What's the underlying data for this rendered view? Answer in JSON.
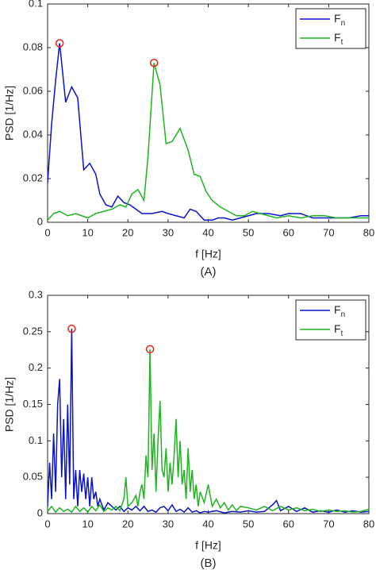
{
  "chart_data": [
    {
      "type": "line",
      "xlabel": "f [Hz]",
      "ylabel": "PSD [1/Hz]",
      "caption": "(A)",
      "xlim": [
        0,
        80
      ],
      "xticks": [
        0,
        10,
        20,
        30,
        40,
        50,
        60,
        70,
        80
      ],
      "ylim": [
        0,
        0.1
      ],
      "yticks": [
        0,
        0.02,
        0.04,
        0.06,
        0.08,
        0.1
      ],
      "legend": "upper right",
      "mark_peaks": true,
      "peak_color": "#e8221b",
      "series": [
        {
          "name": "Fn",
          "color": "#0a14c8",
          "x": [
            0,
            1,
            2,
            3,
            4.5,
            6,
            7.5,
            9,
            10.5,
            12,
            13,
            14.5,
            16,
            17.5,
            19,
            20.5,
            22,
            23.5,
            26,
            28.5,
            30,
            32,
            34,
            35.5,
            37,
            39,
            41,
            42.5,
            44,
            46,
            48,
            50,
            52,
            55,
            58,
            60,
            63,
            66,
            69,
            72,
            75,
            78,
            80
          ],
          "values": [
            0.018,
            0.045,
            0.065,
            0.082,
            0.055,
            0.062,
            0.057,
            0.024,
            0.027,
            0.022,
            0.013,
            0.008,
            0.007,
            0.012,
            0.009,
            0.008,
            0.006,
            0.004,
            0.004,
            0.005,
            0.004,
            0.003,
            0.002,
            0.006,
            0.005,
            0.001,
            0.001,
            0.002,
            0.002,
            0.001,
            0.002,
            0.003,
            0.004,
            0.004,
            0.003,
            0.004,
            0.004,
            0.002,
            0.002,
            0.002,
            0.002,
            0.003,
            0.003
          ]
        },
        {
          "name": "Ft",
          "color": "#1fb41f",
          "x": [
            0,
            1.5,
            3,
            5,
            7,
            8.5,
            10,
            12,
            14,
            16,
            18,
            19.5,
            21,
            22.5,
            24,
            25,
            26.5,
            28,
            29.5,
            31,
            33,
            35,
            36.5,
            38,
            39.5,
            41,
            43,
            45,
            47,
            49,
            51,
            53,
            55,
            57,
            60,
            63,
            66,
            69,
            72,
            75,
            78,
            80
          ],
          "values": [
            0.001,
            0.004,
            0.005,
            0.003,
            0.004,
            0.003,
            0.002,
            0.004,
            0.005,
            0.006,
            0.008,
            0.007,
            0.013,
            0.015,
            0.01,
            0.03,
            0.073,
            0.063,
            0.036,
            0.037,
            0.043,
            0.033,
            0.022,
            0.021,
            0.014,
            0.01,
            0.007,
            0.005,
            0.003,
            0.003,
            0.005,
            0.004,
            0.003,
            0.002,
            0.003,
            0.002,
            0.003,
            0.003,
            0.002,
            0.002,
            0.002,
            0.002
          ]
        }
      ]
    },
    {
      "type": "line",
      "xlabel": "f [Hz]",
      "ylabel": "PSD [1/Hz]",
      "caption": "(B)",
      "xlim": [
        0,
        80
      ],
      "xticks": [
        0,
        10,
        20,
        30,
        40,
        50,
        60,
        70,
        80
      ],
      "ylim": [
        0,
        0.3
      ],
      "yticks": [
        0,
        0.05,
        0.1,
        0.15,
        0.2,
        0.25,
        0.3
      ],
      "legend": "upper right",
      "mark_peaks": true,
      "peak_color": "#e8221b",
      "series": [
        {
          "name": "Fn",
          "color": "#0a14c8",
          "x": [
            0,
            0.5,
            1,
            1.5,
            2,
            2.5,
            3,
            3.5,
            4,
            4.5,
            5,
            5.5,
            6,
            6.5,
            7,
            7.5,
            8,
            8.5,
            9,
            9.5,
            10,
            10.5,
            11,
            11.5,
            12,
            12.5,
            13,
            14,
            15,
            16,
            17,
            18,
            19,
            20,
            21,
            22,
            23,
            24,
            25,
            26,
            27,
            28,
            29,
            30,
            31,
            32,
            33,
            34,
            35,
            36,
            37,
            38,
            39,
            40,
            42,
            44,
            46,
            48,
            50,
            52,
            54,
            56,
            57,
            58,
            60,
            62,
            64,
            66,
            68,
            70,
            72,
            74,
            76,
            78,
            80
          ],
          "values": [
            0.01,
            0.07,
            0.02,
            0.11,
            0.03,
            0.15,
            0.185,
            0.05,
            0.13,
            0.02,
            0.15,
            0.04,
            0.254,
            0.02,
            0.06,
            0.01,
            0.06,
            0.03,
            0.055,
            0.02,
            0.05,
            0.01,
            0.05,
            0.02,
            0.03,
            0.01,
            0.02,
            0.005,
            0.015,
            0.01,
            0.005,
            0.01,
            0.003,
            0.008,
            0.005,
            0.01,
            0.004,
            0.01,
            0.003,
            0.005,
            0.002,
            0.008,
            0.01,
            0.004,
            0.012,
            0.003,
            0.006,
            0.002,
            0.008,
            0.002,
            0.004,
            0.001,
            0.003,
            0.002,
            0.004,
            0.001,
            0.003,
            0.002,
            0.004,
            0.002,
            0.003,
            0.012,
            0.018,
            0.004,
            0.01,
            0.003,
            0.008,
            0.002,
            0.004,
            0.002,
            0.005,
            0.002,
            0.004,
            0.002,
            0.003
          ]
        },
        {
          "name": "Ft",
          "color": "#1fb41f",
          "x": [
            0,
            1,
            2,
            3,
            4,
            5,
            6,
            7,
            8,
            9,
            10,
            11,
            12,
            13,
            14,
            15,
            16,
            17,
            18,
            19,
            19.5,
            20,
            21,
            22,
            22.5,
            23,
            23.5,
            24,
            24.5,
            25,
            25.5,
            26,
            26.5,
            27,
            27.5,
            28,
            28.5,
            29,
            29.5,
            30,
            30.5,
            31,
            31.5,
            32,
            32.5,
            33,
            33.5,
            34,
            34.5,
            35,
            35.5,
            36,
            36.5,
            37,
            37.5,
            38,
            39,
            40,
            41,
            42,
            43,
            44,
            45,
            46,
            47,
            48,
            50,
            52,
            54,
            56,
            58,
            60,
            62,
            64,
            66,
            68,
            70,
            72,
            74,
            76,
            78,
            80
          ],
          "values": [
            0.003,
            0.01,
            0.002,
            0.008,
            0.003,
            0.006,
            0.002,
            0.01,
            0.003,
            0.008,
            0.002,
            0.01,
            0.004,
            0.012,
            0.003,
            0.008,
            0.005,
            0.01,
            0.004,
            0.02,
            0.05,
            0.01,
            0.015,
            0.025,
            0.01,
            0.03,
            0.04,
            0.02,
            0.08,
            0.05,
            0.226,
            0.06,
            0.11,
            0.03,
            0.1,
            0.155,
            0.06,
            0.05,
            0.09,
            0.03,
            0.07,
            0.04,
            0.08,
            0.13,
            0.05,
            0.1,
            0.04,
            0.06,
            0.02,
            0.09,
            0.03,
            0.06,
            0.02,
            0.04,
            0.01,
            0.03,
            0.015,
            0.04,
            0.01,
            0.02,
            0.008,
            0.015,
            0.005,
            0.012,
            0.004,
            0.01,
            0.008,
            0.005,
            0.01,
            0.004,
            0.01,
            0.005,
            0.008,
            0.004,
            0.006,
            0.003,
            0.005,
            0.003,
            0.004,
            0.002,
            0.003,
            0.006
          ]
        }
      ]
    }
  ]
}
